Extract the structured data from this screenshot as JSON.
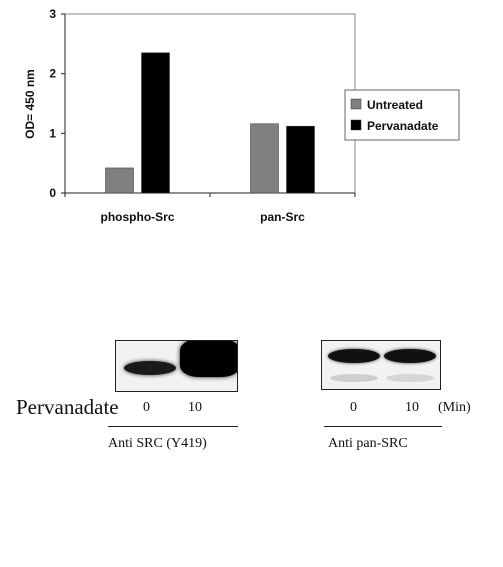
{
  "chart_data": {
    "type": "bar",
    "categories": [
      "phospho-Src",
      "pan-Src"
    ],
    "series": [
      {
        "name": "Untreated",
        "values": [
          0.42,
          1.16
        ],
        "color": "#808080"
      },
      {
        "name": "Pervanadate",
        "values": [
          2.35,
          1.12
        ],
        "color": "#000000"
      }
    ],
    "ylabel": "OD= 450 nm",
    "ylim": [
      0,
      3
    ],
    "yticks": [
      0,
      1,
      2,
      3
    ],
    "grid": false,
    "legend_position": "right"
  },
  "western_blots": {
    "row_label": "Pervanadate",
    "unit": "(Min)",
    "panels": [
      {
        "times": [
          "0",
          "10"
        ],
        "antibody": "Anti SRC (Y419)"
      },
      {
        "times": [
          "0",
          "10"
        ],
        "antibody": "Anti pan-SRC"
      }
    ]
  }
}
